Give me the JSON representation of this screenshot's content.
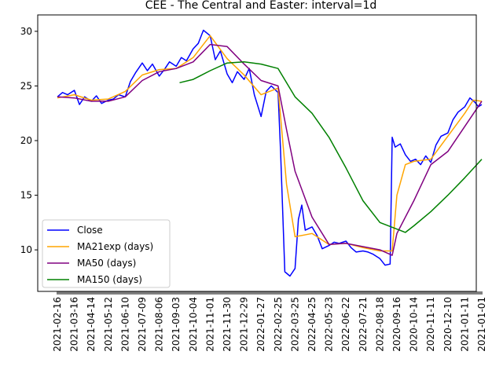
{
  "chart_data": {
    "type": "line",
    "title": "CEE - The Central and Easter: interval=1d",
    "xlabel": "",
    "ylabel": "",
    "ylim": [
      6.2,
      31.5
    ],
    "y_ticks": [
      10,
      15,
      20,
      25,
      30
    ],
    "x_tick_labels": [
      "2021-02-16",
      "2021-03-16",
      "2021-04-14",
      "2021-05-12",
      "2021-06-10",
      "2021-07-09",
      "2021-08-06",
      "2021-09-03",
      "2021-10-04",
      "2021-11-01",
      "2021-11-30",
      "2021-12-29",
      "2022-01-27",
      "2022-02-25",
      "2022-03-25",
      "2022-04-25",
      "2022-05-23",
      "2022-06-22",
      "2022-07-21",
      "2022-08-18",
      "2020-09-16",
      "2020-10-14",
      "2020-11-11",
      "2020-12-10",
      "2021-01-11",
      "2021-01-01"
    ],
    "grid": false,
    "legend_position": "lower-left",
    "series": [
      {
        "name": "Close",
        "color": "#0000ff",
        "points": [
          [
            0,
            24.0
          ],
          [
            0.3,
            24.4
          ],
          [
            0.6,
            24.2
          ],
          [
            1.0,
            24.6
          ],
          [
            1.3,
            23.3
          ],
          [
            1.6,
            24.0
          ],
          [
            2.0,
            23.6
          ],
          [
            2.3,
            24.1
          ],
          [
            2.6,
            23.4
          ],
          [
            3.0,
            23.7
          ],
          [
            3.3,
            23.8
          ],
          [
            3.6,
            24.2
          ],
          [
            4.0,
            24.0
          ],
          [
            4.3,
            25.4
          ],
          [
            4.6,
            26.2
          ],
          [
            5.0,
            27.1
          ],
          [
            5.3,
            26.4
          ],
          [
            5.6,
            27.0
          ],
          [
            6.0,
            25.9
          ],
          [
            6.3,
            26.5
          ],
          [
            6.6,
            27.2
          ],
          [
            7.0,
            26.8
          ],
          [
            7.3,
            27.6
          ],
          [
            7.6,
            27.3
          ],
          [
            8.0,
            28.4
          ],
          [
            8.3,
            28.9
          ],
          [
            8.6,
            30.1
          ],
          [
            9.0,
            29.6
          ],
          [
            9.3,
            27.4
          ],
          [
            9.6,
            28.2
          ],
          [
            10.0,
            26.1
          ],
          [
            10.3,
            25.3
          ],
          [
            10.6,
            26.3
          ],
          [
            11.0,
            25.6
          ],
          [
            11.3,
            26.6
          ],
          [
            11.6,
            24.2
          ],
          [
            12.0,
            22.2
          ],
          [
            12.3,
            24.5
          ],
          [
            12.6,
            25.0
          ],
          [
            13.0,
            24.4
          ],
          [
            13.15,
            19.0
          ],
          [
            13.4,
            8.0
          ],
          [
            13.7,
            7.6
          ],
          [
            14.0,
            8.3
          ],
          [
            14.2,
            12.8
          ],
          [
            14.4,
            14.1
          ],
          [
            14.6,
            11.8
          ],
          [
            15.0,
            12.1
          ],
          [
            15.3,
            11.3
          ],
          [
            15.6,
            10.1
          ],
          [
            16.0,
            10.4
          ],
          [
            16.3,
            10.7
          ],
          [
            16.6,
            10.6
          ],
          [
            17.0,
            10.8
          ],
          [
            17.3,
            10.2
          ],
          [
            17.6,
            9.8
          ],
          [
            18.0,
            9.9
          ],
          [
            18.3,
            9.8
          ],
          [
            18.6,
            9.6
          ],
          [
            19.0,
            9.2
          ],
          [
            19.3,
            8.6
          ],
          [
            19.6,
            8.7
          ],
          [
            19.72,
            20.3
          ],
          [
            19.9,
            19.4
          ],
          [
            20.2,
            19.7
          ],
          [
            20.5,
            18.7
          ],
          [
            20.8,
            18.1
          ],
          [
            21.1,
            18.3
          ],
          [
            21.4,
            17.8
          ],
          [
            21.7,
            18.6
          ],
          [
            22.0,
            18.0
          ],
          [
            22.3,
            19.6
          ],
          [
            22.6,
            20.4
          ],
          [
            23.0,
            20.7
          ],
          [
            23.3,
            21.9
          ],
          [
            23.6,
            22.6
          ],
          [
            24.0,
            23.1
          ],
          [
            24.3,
            23.9
          ],
          [
            24.6,
            23.5
          ],
          [
            24.8,
            23.1
          ],
          [
            25.0,
            23.3
          ]
        ]
      },
      {
        "name": "MA21exp (days)",
        "color": "#ffa500",
        "points": [
          [
            0,
            23.9
          ],
          [
            1,
            24.2
          ],
          [
            2,
            23.7
          ],
          [
            3,
            23.8
          ],
          [
            4,
            24.5
          ],
          [
            5,
            26.0
          ],
          [
            6,
            26.5
          ],
          [
            7,
            26.6
          ],
          [
            8,
            27.6
          ],
          [
            9,
            29.6
          ],
          [
            10,
            27.5
          ],
          [
            11,
            26.0
          ],
          [
            12,
            24.2
          ],
          [
            13,
            24.8
          ],
          [
            13.5,
            16.0
          ],
          [
            14,
            11.2
          ],
          [
            15,
            11.5
          ],
          [
            16,
            10.5
          ],
          [
            17,
            10.6
          ],
          [
            18,
            10.2
          ],
          [
            19,
            9.9
          ],
          [
            19.72,
            9.9
          ],
          [
            20,
            15.0
          ],
          [
            20.5,
            17.8
          ],
          [
            21,
            18.1
          ],
          [
            22,
            18.3
          ],
          [
            23,
            20.4
          ],
          [
            24,
            22.5
          ],
          [
            24.5,
            23.7
          ],
          [
            25,
            23.6
          ]
        ]
      },
      {
        "name": "MA50 (days)",
        "color": "#800080",
        "points": [
          [
            0,
            24.0
          ],
          [
            1,
            23.9
          ],
          [
            2,
            23.6
          ],
          [
            3,
            23.6
          ],
          [
            4,
            24.0
          ],
          [
            5,
            25.5
          ],
          [
            6,
            26.3
          ],
          [
            7,
            26.6
          ],
          [
            8,
            27.2
          ],
          [
            9,
            28.8
          ],
          [
            10,
            28.6
          ],
          [
            11,
            27.0
          ],
          [
            12,
            25.5
          ],
          [
            13,
            25.0
          ],
          [
            13.5,
            21.0
          ],
          [
            14,
            17.2
          ],
          [
            15,
            13.0
          ],
          [
            16,
            10.5
          ],
          [
            17,
            10.6
          ],
          [
            18,
            10.3
          ],
          [
            19,
            10.0
          ],
          [
            19.72,
            9.5
          ],
          [
            20,
            11.5
          ],
          [
            21,
            14.5
          ],
          [
            22,
            17.8
          ],
          [
            23,
            19.0
          ],
          [
            24,
            21.3
          ],
          [
            25,
            23.6
          ]
        ]
      },
      {
        "name": "MA150 (days)",
        "color": "#008000",
        "points": [
          [
            7.2,
            25.3
          ],
          [
            8,
            25.6
          ],
          [
            9,
            26.4
          ],
          [
            10,
            27.1
          ],
          [
            11,
            27.2
          ],
          [
            12,
            27.0
          ],
          [
            13,
            26.6
          ],
          [
            14,
            24.0
          ],
          [
            15,
            22.5
          ],
          [
            16,
            20.3
          ],
          [
            17,
            17.5
          ],
          [
            18,
            14.5
          ],
          [
            19,
            12.5
          ],
          [
            20,
            11.9
          ],
          [
            20.5,
            11.6
          ],
          [
            21,
            12.2
          ],
          [
            22,
            13.5
          ],
          [
            23,
            15.0
          ],
          [
            24,
            16.6
          ],
          [
            25,
            18.3
          ]
        ]
      }
    ]
  }
}
